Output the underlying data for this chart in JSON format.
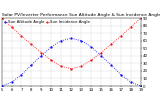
{
  "title": "Solar PV/Inverter Performance Sun Altitude Angle & Sun Incidence Angle on PV Panels",
  "legend": [
    "Sun Altitude Angle",
    "Sun Incidence Angle"
  ],
  "line_colors": [
    "blue",
    "red"
  ],
  "x_hours": [
    5,
    6,
    7,
    8,
    9,
    10,
    11,
    12,
    13,
    14,
    15,
    16,
    17,
    18,
    19
  ],
  "altitude_angle": [
    0,
    5,
    15,
    28,
    40,
    52,
    60,
    63,
    60,
    52,
    40,
    28,
    15,
    5,
    0
  ],
  "incidence_angle": [
    90,
    78,
    66,
    55,
    44,
    34,
    26,
    23,
    26,
    34,
    44,
    55,
    66,
    78,
    90
  ],
  "ylim": [
    0,
    90
  ],
  "yticks": [
    0,
    10,
    20,
    30,
    40,
    50,
    60,
    70,
    80,
    90
  ],
  "xticks": [
    5,
    6,
    7,
    8,
    9,
    10,
    11,
    12,
    13,
    14,
    15,
    16,
    17,
    18,
    19
  ],
  "title_fontsize": 3.2,
  "legend_fontsize": 2.8,
  "tick_fontsize": 2.8,
  "bg_color": "#ffffff",
  "grid_color": "#bbbbbb",
  "grid_style": "--",
  "marker_size": 1.2,
  "line_width": 0.6
}
